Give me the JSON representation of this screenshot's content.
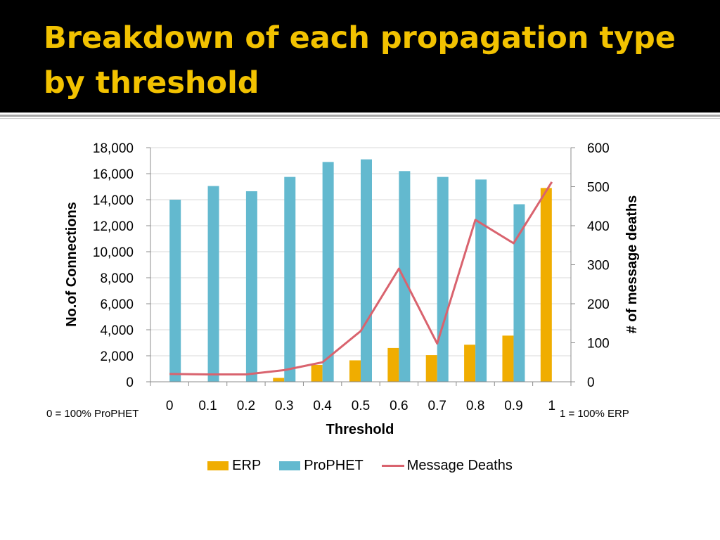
{
  "slide": {
    "title": "Breakdown of each propagation type by threshold",
    "left_note": "0 = 100% ProPHET",
    "right_note": "1 = 100% ERP"
  },
  "colors": {
    "title_text": "#f2c200",
    "title_background": "#000000",
    "erp": "#f0ad00",
    "prophet": "#63b9cf",
    "message_deaths": "#d9636e"
  },
  "chart_data": {
    "type": "bar",
    "categories": [
      "0",
      "0.1",
      "0.2",
      "0.3",
      "0.4",
      "0.5",
      "0.6",
      "0.7",
      "0.8",
      "0.9",
      "1"
    ],
    "series": [
      {
        "name": "ERP",
        "type": "bar",
        "axis": "left",
        "values": [
          0,
          0,
          0,
          300,
          1300,
          1650,
          2600,
          2050,
          2850,
          3550,
          14900
        ]
      },
      {
        "name": "ProPHET",
        "type": "bar",
        "axis": "left",
        "values": [
          14000,
          15050,
          14650,
          15750,
          16900,
          17100,
          16200,
          15750,
          15550,
          13650,
          0
        ]
      },
      {
        "name": "Message Deaths",
        "type": "line",
        "axis": "right",
        "values": [
          20,
          19,
          19,
          30,
          50,
          130,
          290,
          98,
          415,
          355,
          512
        ]
      }
    ],
    "xlabel": "Threshold",
    "ylabel": "No.of Connections",
    "y2label": "# of message deaths",
    "ylim": [
      0,
      18000
    ],
    "y2lim": [
      0,
      600
    ],
    "yticks": [
      "0",
      "2,000",
      "4,000",
      "6,000",
      "8,000",
      "10,000",
      "12,000",
      "14,000",
      "16,000",
      "18,000"
    ],
    "y2ticks": [
      "0",
      "100",
      "200",
      "300",
      "400",
      "500",
      "600"
    ],
    "grid": true,
    "legend_position": "bottom"
  }
}
